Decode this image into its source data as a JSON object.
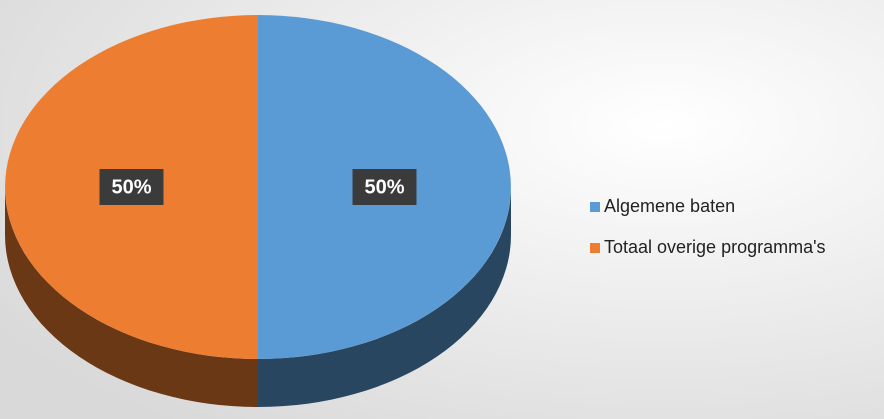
{
  "chart_data": {
    "type": "pie",
    "categories": [
      "Algemene baten",
      "Totaal overige programma's"
    ],
    "values": [
      50,
      50
    ],
    "value_labels": [
      "50%",
      "50%"
    ],
    "colors": [
      "#5b9bd5",
      "#ed7d31"
    ],
    "legend": "right"
  }
}
